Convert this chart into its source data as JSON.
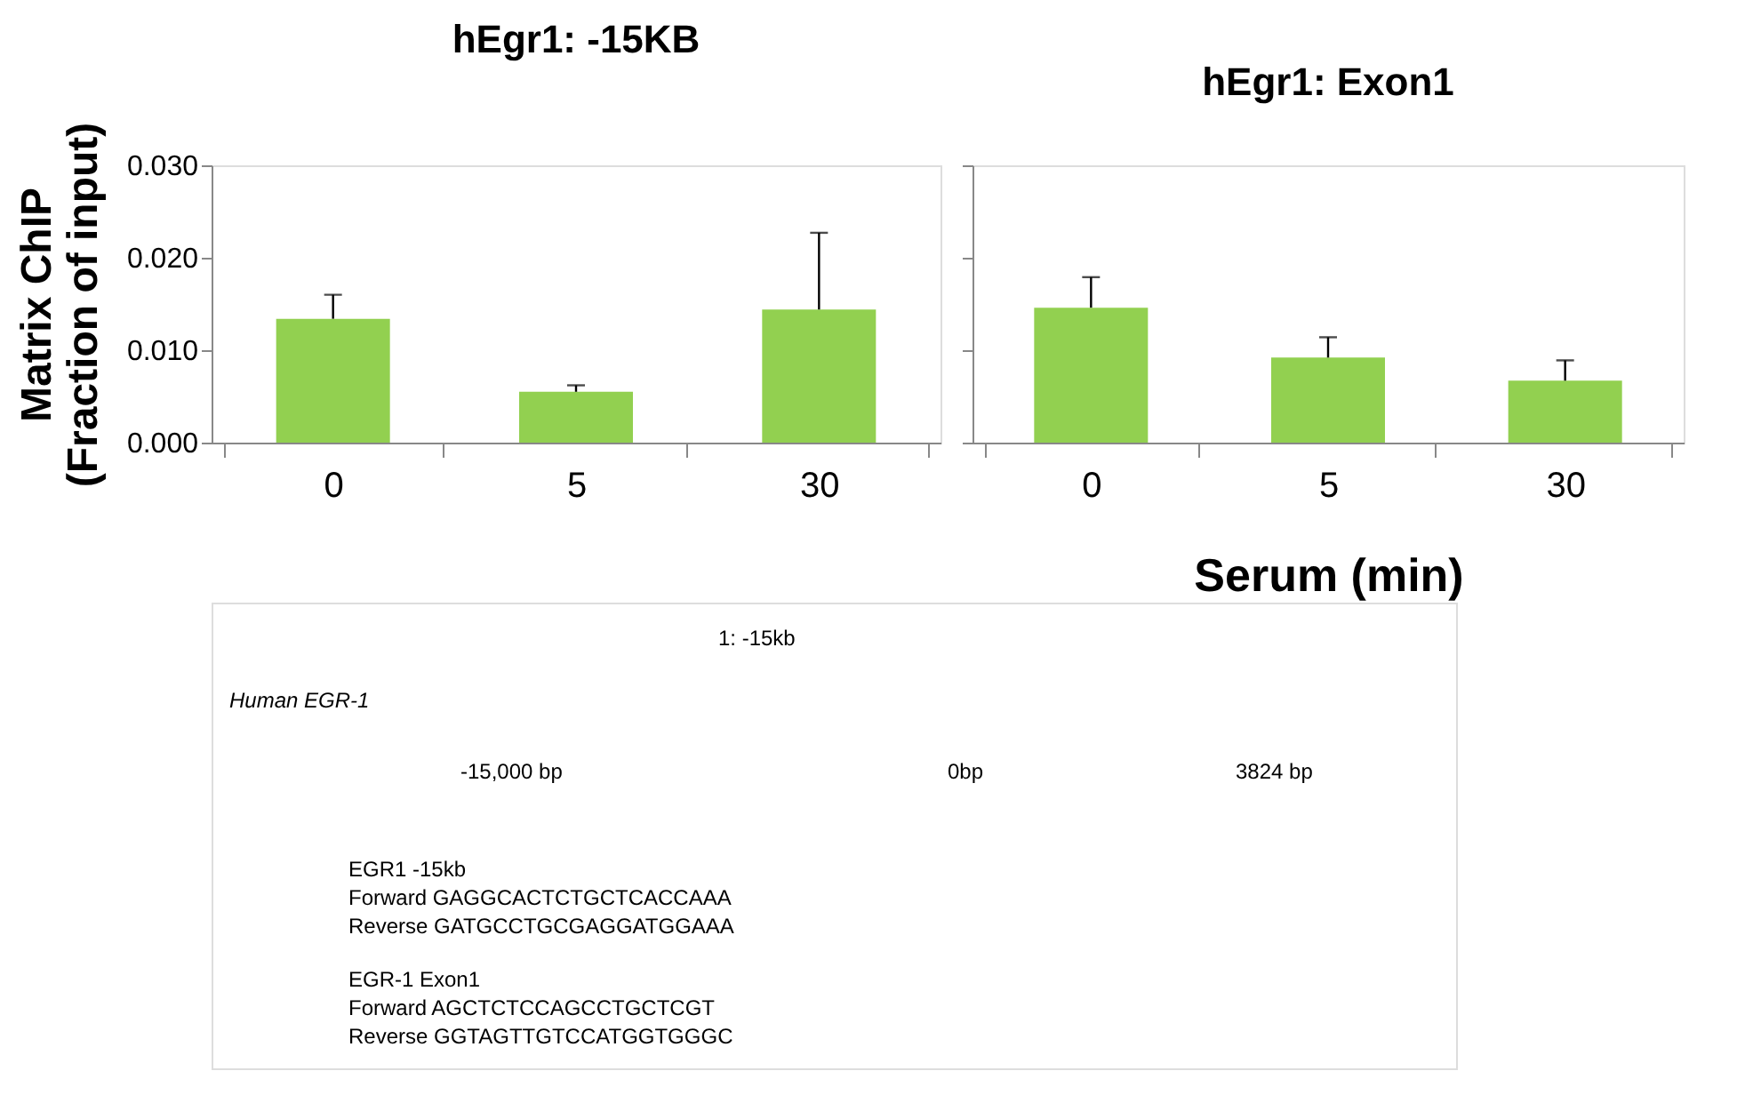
{
  "chart_data": [
    {
      "type": "bar",
      "title": "hEgr1: -15KB",
      "ylabel": "Matrix ChIP\n(Fraction of input)",
      "categories": [
        "0",
        "5",
        "30"
      ],
      "series": [
        {
          "color": "#92d050",
          "values": [
            0.0134,
            0.0055,
            0.0144
          ],
          "errors": [
            [
              0.0134,
              0.016
            ],
            [
              0.0055,
              0.0062
            ],
            [
              0.0144,
              0.0227
            ]
          ]
        }
      ],
      "ylim": [
        0,
        0.03
      ],
      "yticks": [
        {
          "value": 0,
          "label": "0.000"
        },
        {
          "value": 0.01,
          "label": "0.010"
        },
        {
          "value": 0.02,
          "label": "0.020"
        },
        {
          "value": 0.03,
          "label": "0.030"
        }
      ],
      "grid": false
    },
    {
      "type": "bar",
      "title": "hEgr1: Exon1",
      "xlabel": "Serum (min)",
      "categories": [
        "0",
        "5",
        "30"
      ],
      "series": [
        {
          "color": "#92d050",
          "values": [
            0.0146,
            0.0092,
            0.0067
          ],
          "errors": [
            [
              0.0146,
              0.0179
            ],
            [
              0.0092,
              0.0114
            ],
            [
              0.0067,
              0.0089
            ]
          ]
        }
      ],
      "ylim": [
        0,
        0.03
      ],
      "yticks": [
        {
          "value": 0,
          "label": null
        },
        {
          "value": 0.01,
          "label": null
        },
        {
          "value": 0.02,
          "label": null
        },
        {
          "value": 0.03,
          "label": null
        }
      ],
      "tick_labels": "x",
      "grid": false
    },
    {
      "type": "other",
      "annotations": [
        "1: -15kb",
        "Human EGR-1",
        "-15,000  bp",
        "0bp",
        "3824 bp",
        "EGR1 -15kb",
        "Forward  GAGGCACTCTGCTCACCAAA",
        "Reverse  GATGCCTGCGAGGATGGAAA",
        "EGR-1 Exon1",
        "Forward  AGCTCTCCAGCCTGCTCGT",
        "Reverse  GGTAGTTGTCCATGGTGGGC"
      ]
    }
  ]
}
